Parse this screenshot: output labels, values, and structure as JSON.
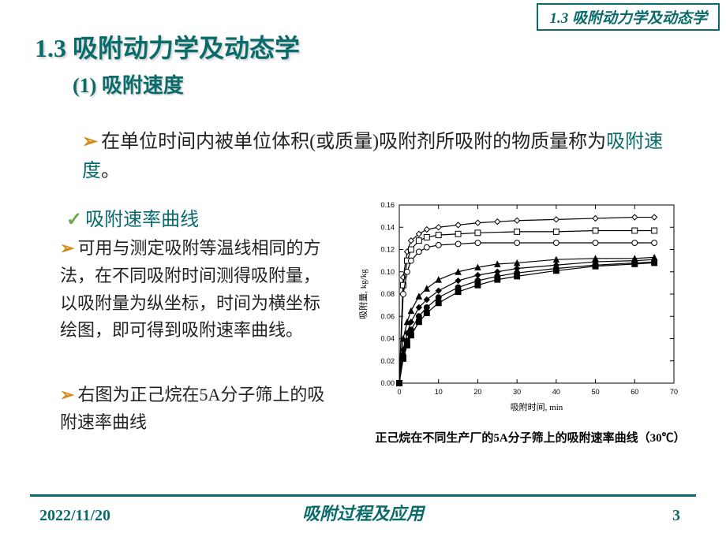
{
  "header_label": "1.3 吸附动力学及动态学",
  "title": "1.3 吸附动力学及动态学",
  "subtitle": "(1) 吸附速度",
  "def_pre": "在单位时间内被单位体积(或质量)吸附剂所吸附的物质量称为",
  "def_hl": "吸附速度",
  "def_post": "。",
  "curve_title": "吸附速率曲线",
  "para1": "可用与测定吸附等温线相同的方法，在不同吸附时间测得吸附量，以吸附量为纵坐标，时间为横坐标绘图，即可得到吸附速率曲线。",
  "para2": "右图为正己烷在5A分子筛上的吸附速率曲线",
  "chart_caption": "正己烷在不同生产厂的5A分子筛上的吸附速率曲线（30℃）",
  "footer_date": "2022/11/20",
  "footer_center": "吸附过程及应用",
  "footer_page": "3",
  "chart": {
    "type": "line-scatter",
    "xlabel": "吸附时间, min",
    "ylabel": "吸附量, kg/kg",
    "xlim": [
      0,
      70
    ],
    "ylim": [
      0,
      0.16
    ],
    "xticks": [
      0,
      10,
      20,
      30,
      40,
      50,
      60,
      70
    ],
    "yticks": [
      0.0,
      0.02,
      0.04,
      0.06,
      0.08,
      0.1,
      0.12,
      0.14,
      0.16
    ],
    "ytick_labels": [
      "0.00",
      "0.02",
      "0.04",
      "0.06",
      "0.08",
      "0.10",
      "0.12",
      "0.14",
      "0.16"
    ],
    "background_color": "#ffffff",
    "axis_color": "#000000",
    "tick_fontsize": 9,
    "label_fontsize": 11,
    "line_color": "#000000",
    "line_width": 1.2,
    "marker_size": 4.5,
    "marker_fill": "#ffffff",
    "series": [
      {
        "marker": "diamond",
        "fill": "#ffffff",
        "x": [
          0,
          1,
          2,
          3,
          5,
          7,
          10,
          15,
          20,
          25,
          30,
          40,
          50,
          60,
          65
        ],
        "y": [
          0,
          0.095,
          0.118,
          0.128,
          0.134,
          0.138,
          0.14,
          0.142,
          0.144,
          0.145,
          0.146,
          0.147,
          0.148,
          0.149,
          0.149
        ]
      },
      {
        "marker": "square",
        "fill": "#ffffff",
        "x": [
          0,
          1,
          2,
          3,
          5,
          7,
          10,
          15,
          20,
          30,
          40,
          50,
          60,
          65
        ],
        "y": [
          0,
          0.088,
          0.11,
          0.12,
          0.128,
          0.131,
          0.133,
          0.134,
          0.135,
          0.136,
          0.136,
          0.137,
          0.137,
          0.137
        ]
      },
      {
        "marker": "circle",
        "fill": "#ffffff",
        "x": [
          0,
          1,
          2,
          3,
          5,
          7,
          10,
          15,
          20,
          30,
          40,
          50,
          60,
          65
        ],
        "y": [
          0,
          0.08,
          0.1,
          0.11,
          0.118,
          0.122,
          0.124,
          0.125,
          0.126,
          0.126,
          0.126,
          0.126,
          0.126,
          0.126
        ]
      },
      {
        "marker": "triangle",
        "fill": "#000000",
        "x": [
          0,
          1,
          2,
          3,
          5,
          7,
          10,
          15,
          20,
          25,
          30,
          40,
          50,
          60,
          65
        ],
        "y": [
          0,
          0.04,
          0.055,
          0.065,
          0.078,
          0.085,
          0.093,
          0.1,
          0.104,
          0.107,
          0.108,
          0.111,
          0.112,
          0.112,
          0.113
        ]
      },
      {
        "marker": "diamond",
        "fill": "#000000",
        "x": [
          0,
          1,
          2,
          3,
          5,
          7,
          10,
          15,
          20,
          25,
          30,
          40,
          50,
          60,
          65
        ],
        "y": [
          0,
          0.03,
          0.045,
          0.055,
          0.068,
          0.075,
          0.083,
          0.092,
          0.097,
          0.1,
          0.103,
          0.106,
          0.109,
          0.11,
          0.111
        ]
      },
      {
        "marker": "circle",
        "fill": "#000000",
        "x": [
          0,
          1,
          2,
          3,
          5,
          7,
          10,
          15,
          20,
          25,
          30,
          40,
          50,
          60,
          65
        ],
        "y": [
          0,
          0.025,
          0.038,
          0.048,
          0.06,
          0.068,
          0.077,
          0.086,
          0.092,
          0.096,
          0.099,
          0.103,
          0.106,
          0.108,
          0.109
        ]
      },
      {
        "marker": "square",
        "fill": "#000000",
        "x": [
          0,
          1,
          2,
          3,
          5,
          7,
          10,
          15,
          20,
          25,
          30,
          40,
          50,
          60,
          65
        ],
        "y": [
          0,
          0.022,
          0.034,
          0.043,
          0.055,
          0.063,
          0.072,
          0.082,
          0.088,
          0.093,
          0.096,
          0.101,
          0.105,
          0.107,
          0.108
        ]
      }
    ]
  }
}
